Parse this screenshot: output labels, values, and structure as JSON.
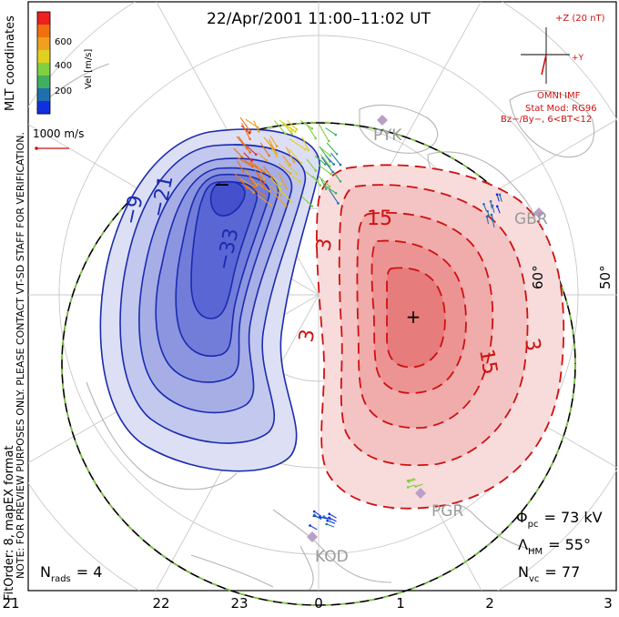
{
  "title": "22/Apr/2001 11:00–11:02 UT",
  "coords_label": "MLT coordinates",
  "side_note_1": "NOTE: FOR PREVIEW PURPOSES ONLY. PLEASE CONTACT VT-SD STAFF FOR VERIFICATION.",
  "side_note_2": "FitOrder: 8, mapEX format",
  "colorbar": {
    "label": "Vel [m/s]",
    "ticks": [
      "600",
      "400",
      "200"
    ],
    "colors": [
      "#ee2020",
      "#f07010",
      "#f0a020",
      "#e0d020",
      "#80d040",
      "#40b060",
      "#2070b0",
      "#1030e0"
    ]
  },
  "reference_vector": {
    "label": "1000 m/s",
    "color": "#d01010"
  },
  "imf": {
    "top_label": "+Z (20 nT)",
    "y_label": "+Y",
    "source": "OMNI IMF",
    "stat_mod": "Stat Mod: RG96",
    "condition": "Bz−/By−, 6<BT<12"
  },
  "stations": [
    "PYK",
    "GBR",
    "PGR",
    "KOD"
  ],
  "latitude_labels": [
    "60°",
    "50°"
  ],
  "contour_labels": {
    "negative": [
      "−9",
      "−21",
      "−33"
    ],
    "positive": [
      "15",
      "3",
      "15",
      "3",
      "3"
    ]
  },
  "stats": {
    "phi_symbol": "Φ",
    "phi_sub": "pc",
    "phi_value": "= 73 kV",
    "lambda_symbol": "Λ",
    "lambda_sub": "HM",
    "lambda_value": "= 55°",
    "nvc_symbol": "N",
    "nvc_sub": "vc",
    "nvc_value": "= 77",
    "nrads_symbol": "N",
    "nrads_sub": "rads",
    "nrads_value": "= 4"
  },
  "mlt_axis": [
    "21",
    "22",
    "23",
    "0",
    "1",
    "2",
    "3"
  ],
  "extrema": {
    "min_marker": "−",
    "max_marker": "+"
  },
  "colors": {
    "negative": "#1a2bb0",
    "positive": "#d01010",
    "boundary_dash": "#7cc83c"
  }
}
